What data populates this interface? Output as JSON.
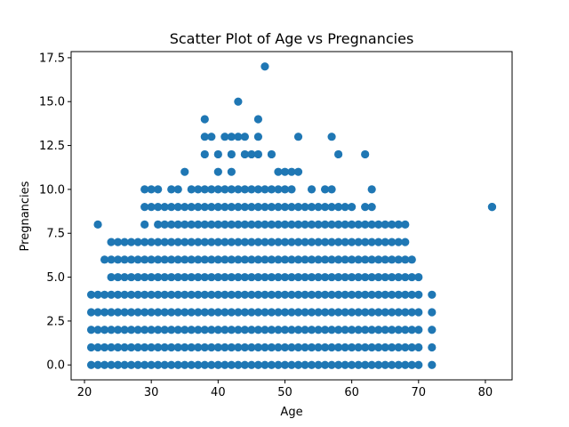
{
  "chart_data": {
    "type": "scatter",
    "title": "Scatter Plot of Age vs Pregnancies",
    "xlabel": "Age",
    "ylabel": "Pregnancies",
    "xlim": [
      18,
      84
    ],
    "ylim": [
      -0.85,
      17.85
    ],
    "x_ticks": [
      20,
      30,
      40,
      50,
      60,
      70,
      80
    ],
    "x_tick_labels": [
      "20",
      "30",
      "40",
      "50",
      "60",
      "70",
      "80"
    ],
    "y_ticks": [
      0,
      2.5,
      5,
      7.5,
      10,
      12.5,
      15,
      17.5
    ],
    "y_tick_labels": [
      "0.0",
      "2.5",
      "5.0",
      "7.5",
      "10.0",
      "12.5",
      "15.0",
      "17.5"
    ],
    "grid": false,
    "marker_color": "#1f77b4",
    "x": [
      21,
      22,
      23,
      24,
      25,
      26,
      27,
      28,
      29,
      30,
      31,
      32,
      33,
      34,
      35,
      36,
      37,
      38,
      39,
      40,
      41,
      42,
      43,
      44,
      45,
      46,
      47,
      48,
      49,
      50,
      51,
      52,
      53,
      54,
      55,
      56,
      57,
      58,
      59,
      60,
      61,
      62,
      63,
      64,
      65,
      66,
      67,
      68,
      69,
      70,
      72,
      81,
      21,
      22,
      23,
      24,
      25,
      26,
      27,
      28,
      29,
      30,
      31,
      32,
      33,
      34,
      35,
      36,
      37,
      38,
      39,
      40,
      41,
      42,
      43,
      44,
      45,
      46,
      47,
      48,
      49,
      50,
      51,
      52,
      53,
      54,
      55,
      56,
      57,
      58,
      59,
      60,
      61,
      62,
      63,
      64,
      65,
      66,
      67,
      68,
      69,
      70,
      72,
      21,
      22,
      23,
      24,
      25,
      26,
      27,
      28,
      29,
      30,
      31,
      32,
      33,
      34,
      35,
      36,
      37,
      38,
      39,
      40,
      41,
      42,
      43,
      44,
      45,
      46,
      47,
      48,
      49,
      50,
      51,
      52,
      53,
      54,
      55,
      56,
      57,
      58,
      59,
      60,
      61,
      62,
      63,
      64,
      65,
      66,
      67,
      68,
      69,
      70,
      72,
      21,
      22,
      23,
      24,
      25,
      26,
      27,
      28,
      29,
      30,
      31,
      32,
      33,
      34,
      35,
      36,
      37,
      38,
      39,
      40,
      41,
      42,
      43,
      44,
      45,
      46,
      47,
      48,
      49,
      50,
      51,
      52,
      53,
      54,
      55,
      56,
      57,
      58,
      59,
      60,
      61,
      62,
      63,
      64,
      65,
      66,
      67,
      68,
      69,
      70,
      72,
      21,
      22,
      23,
      24,
      25,
      26,
      27,
      28,
      29,
      30,
      31,
      32,
      33,
      34,
      35,
      36,
      37,
      38,
      39,
      40,
      41,
      42,
      43,
      44,
      45,
      46,
      47,
      48,
      49,
      50,
      51,
      52,
      53,
      54,
      55,
      56,
      57,
      58,
      59,
      60,
      61,
      62,
      63,
      64,
      65,
      66,
      67,
      68,
      69,
      70,
      72,
      24,
      25,
      26,
      27,
      28,
      29,
      30,
      31,
      32,
      33,
      34,
      35,
      36,
      37,
      38,
      39,
      40,
      41,
      42,
      43,
      44,
      45,
      46,
      47,
      48,
      49,
      50,
      51,
      52,
      53,
      54,
      55,
      56,
      57,
      58,
      59,
      60,
      61,
      62,
      63,
      64,
      65,
      66,
      67,
      68,
      69,
      70,
      23,
      24,
      25,
      26,
      27,
      28,
      29,
      30,
      31,
      32,
      33,
      34,
      35,
      36,
      37,
      38,
      39,
      40,
      41,
      42,
      43,
      44,
      45,
      46,
      47,
      48,
      49,
      50,
      51,
      52,
      53,
      54,
      55,
      56,
      57,
      58,
      59,
      60,
      61,
      62,
      63,
      64,
      65,
      66,
      67,
      68,
      69,
      24,
      25,
      26,
      27,
      28,
      29,
      30,
      31,
      32,
      33,
      34,
      35,
      36,
      37,
      38,
      39,
      40,
      41,
      42,
      43,
      44,
      45,
      46,
      47,
      48,
      49,
      50,
      51,
      52,
      53,
      54,
      55,
      56,
      57,
      58,
      59,
      60,
      61,
      62,
      63,
      64,
      65,
      66,
      67,
      68,
      22,
      29,
      31,
      32,
      33,
      34,
      35,
      36,
      37,
      38,
      39,
      40,
      41,
      42,
      43,
      44,
      45,
      46,
      47,
      48,
      49,
      50,
      51,
      52,
      53,
      54,
      55,
      56,
      57,
      58,
      59,
      60,
      61,
      62,
      63,
      64,
      65,
      66,
      67,
      68,
      81,
      29,
      30,
      31,
      32,
      33,
      34,
      35,
      36,
      37,
      38,
      39,
      40,
      41,
      42,
      43,
      44,
      45,
      46,
      47,
      48,
      49,
      50,
      51,
      52,
      53,
      54,
      55,
      56,
      57,
      58,
      59,
      60,
      62,
      63,
      29,
      30,
      31,
      33,
      34,
      36,
      37,
      38,
      39,
      40,
      41,
      42,
      43,
      44,
      45,
      46,
      47,
      48,
      49,
      50,
      51,
      54,
      56,
      57,
      63,
      35,
      40,
      42,
      49,
      51,
      52,
      50,
      38,
      40,
      42,
      44,
      45,
      46,
      48,
      58,
      62,
      38,
      39,
      41,
      42,
      43,
      44,
      46,
      52,
      57,
      38,
      46,
      43,
      47
    ],
    "y": [
      0,
      0,
      0,
      0,
      0,
      0,
      0,
      0,
      0,
      0,
      0,
      0,
      0,
      0,
      0,
      0,
      0,
      0,
      0,
      0,
      0,
      0,
      0,
      0,
      0,
      0,
      0,
      0,
      0,
      0,
      0,
      0,
      0,
      0,
      0,
      0,
      0,
      0,
      0,
      0,
      0,
      0,
      0,
      0,
      0,
      0,
      0,
      0,
      0,
      0,
      0,
      9,
      1,
      1,
      1,
      1,
      1,
      1,
      1,
      1,
      1,
      1,
      1,
      1,
      1,
      1,
      1,
      1,
      1,
      1,
      1,
      1,
      1,
      1,
      1,
      1,
      1,
      1,
      1,
      1,
      1,
      1,
      1,
      1,
      1,
      1,
      1,
      1,
      1,
      1,
      1,
      1,
      1,
      1,
      1,
      1,
      1,
      1,
      1,
      1,
      1,
      1,
      1,
      2,
      2,
      2,
      2,
      2,
      2,
      2,
      2,
      2,
      2,
      2,
      2,
      2,
      2,
      2,
      2,
      2,
      2,
      2,
      2,
      2,
      2,
      2,
      2,
      2,
      2,
      2,
      2,
      2,
      2,
      2,
      2,
      2,
      2,
      2,
      2,
      2,
      2,
      2,
      2,
      2,
      2,
      2,
      2,
      2,
      2,
      2,
      2,
      2,
      2,
      2,
      3,
      3,
      3,
      3,
      3,
      3,
      3,
      3,
      3,
      3,
      3,
      3,
      3,
      3,
      3,
      3,
      3,
      3,
      3,
      3,
      3,
      3,
      3,
      3,
      3,
      3,
      3,
      3,
      3,
      3,
      3,
      3,
      3,
      3,
      3,
      3,
      3,
      3,
      3,
      3,
      3,
      3,
      3,
      3,
      3,
      3,
      3,
      3,
      3,
      3,
      3,
      4,
      4,
      4,
      4,
      4,
      4,
      4,
      4,
      4,
      4,
      4,
      4,
      4,
      4,
      4,
      4,
      4,
      4,
      4,
      4,
      4,
      4,
      4,
      4,
      4,
      4,
      4,
      4,
      4,
      4,
      4,
      4,
      4,
      4,
      4,
      4,
      4,
      4,
      4,
      4,
      4,
      4,
      4,
      4,
      4,
      4,
      4,
      4,
      4,
      4,
      4,
      5,
      5,
      5,
      5,
      5,
      5,
      5,
      5,
      5,
      5,
      5,
      5,
      5,
      5,
      5,
      5,
      5,
      5,
      5,
      5,
      5,
      5,
      5,
      5,
      5,
      5,
      5,
      5,
      5,
      5,
      5,
      5,
      5,
      5,
      5,
      5,
      5,
      5,
      5,
      5,
      5,
      5,
      5,
      5,
      5,
      5,
      5,
      6,
      6,
      6,
      6,
      6,
      6,
      6,
      6,
      6,
      6,
      6,
      6,
      6,
      6,
      6,
      6,
      6,
      6,
      6,
      6,
      6,
      6,
      6,
      6,
      6,
      6,
      6,
      6,
      6,
      6,
      6,
      6,
      6,
      6,
      6,
      6,
      6,
      6,
      6,
      6,
      6,
      6,
      6,
      6,
      6,
      6,
      6,
      7,
      7,
      7,
      7,
      7,
      7,
      7,
      7,
      7,
      7,
      7,
      7,
      7,
      7,
      7,
      7,
      7,
      7,
      7,
      7,
      7,
      7,
      7,
      7,
      7,
      7,
      7,
      7,
      7,
      7,
      7,
      7,
      7,
      7,
      7,
      7,
      7,
      7,
      7,
      7,
      7,
      7,
      7,
      7,
      7,
      8,
      8,
      8,
      8,
      8,
      8,
      8,
      8,
      8,
      8,
      8,
      8,
      8,
      8,
      8,
      8,
      8,
      8,
      8,
      8,
      8,
      8,
      8,
      8,
      8,
      8,
      8,
      8,
      8,
      8,
      8,
      8,
      8,
      8,
      8,
      8,
      8,
      8,
      8,
      8,
      9,
      9,
      9,
      9,
      9,
      9,
      9,
      9,
      9,
      9,
      9,
      9,
      9,
      9,
      9,
      9,
      9,
      9,
      9,
      9,
      9,
      9,
      9,
      9,
      9,
      9,
      9,
      9,
      9,
      9,
      9,
      9,
      9,
      9,
      9,
      10,
      10,
      10,
      10,
      10,
      10,
      10,
      10,
      10,
      10,
      10,
      10,
      10,
      10,
      10,
      10,
      10,
      10,
      10,
      10,
      10,
      10,
      10,
      10,
      10,
      11,
      11,
      11,
      11,
      11,
      11,
      11,
      12,
      12,
      12,
      12,
      12,
      12,
      12,
      12,
      12,
      13,
      13,
      13,
      13,
      13,
      13,
      13,
      13,
      13,
      14,
      14,
      15,
      17
    ]
  }
}
